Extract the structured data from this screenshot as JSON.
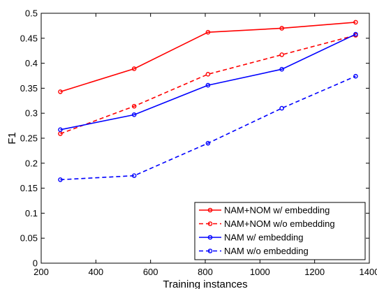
{
  "chart_data": {
    "type": "line",
    "xlabel": "Training instances",
    "ylabel": "F1",
    "xlim": [
      200,
      1400
    ],
    "ylim": [
      0,
      0.5
    ],
    "xticks": [
      "200",
      "400",
      "600",
      "800",
      "1000",
      "1200",
      "1400"
    ],
    "yticks": [
      "0",
      "0.05",
      "0.1",
      "0.15",
      "0.2",
      "0.25",
      "0.3",
      "0.35",
      "0.4",
      "0.45",
      "0.5"
    ],
    "grid": false,
    "legend_position": "bottom-right",
    "x": [
      270,
      540,
      810,
      1080,
      1350
    ],
    "series": [
      {
        "name": "NAM+NOM w/ embedding",
        "values": [
          0.343,
          0.389,
          0.462,
          0.47,
          0.482
        ],
        "color": "#ff0000",
        "dash": "solid"
      },
      {
        "name": "NAM+NOM w/o embedding",
        "values": [
          0.259,
          0.314,
          0.378,
          0.417,
          0.456
        ],
        "color": "#ff0000",
        "dash": "dashed"
      },
      {
        "name": "NAM w/ embedding",
        "values": [
          0.267,
          0.297,
          0.356,
          0.388,
          0.458
        ],
        "color": "#0000ff",
        "dash": "solid"
      },
      {
        "name": "NAM w/o embedding",
        "values": [
          0.167,
          0.175,
          0.24,
          0.31,
          0.374
        ],
        "color": "#0000ff",
        "dash": "dashed"
      }
    ]
  }
}
